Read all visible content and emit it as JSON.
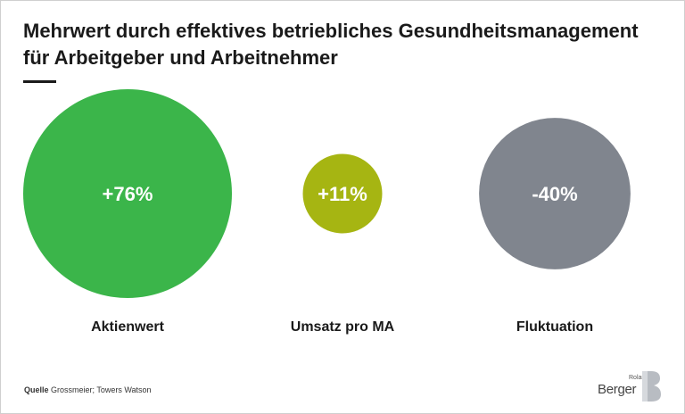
{
  "header": {
    "title_line1": "Mehrwert durch effektives betriebliches Gesundheitsmanagement",
    "title_line2": "für Arbeitgeber und Arbeitnehmer"
  },
  "footer": {
    "source_key": "Quelle",
    "source_text": "Grossmeier; Towers Watson"
  },
  "logo": {
    "roland": "Roland",
    "berger": "Berger"
  },
  "colors": {
    "positive_large": "#3bb54a",
    "positive_small": "#a6b512",
    "negative": "#80858e",
    "value_text_inside": "#ffffff"
  },
  "chart_data": {
    "type": "bubble",
    "title": "Mehrwert durch effektives betriebliches Gesundheitsmanagement für Arbeitgeber und Arbeitnehmer",
    "categories": [
      "Aktienwert",
      "Umsatz pro MA",
      "Fluktuation"
    ],
    "values": [
      76,
      11,
      -40
    ],
    "value_labels": [
      "+76%",
      "+11%",
      "-40%"
    ],
    "size_encodes": "absolute percentage change",
    "legend": "none",
    "grid": false
  }
}
